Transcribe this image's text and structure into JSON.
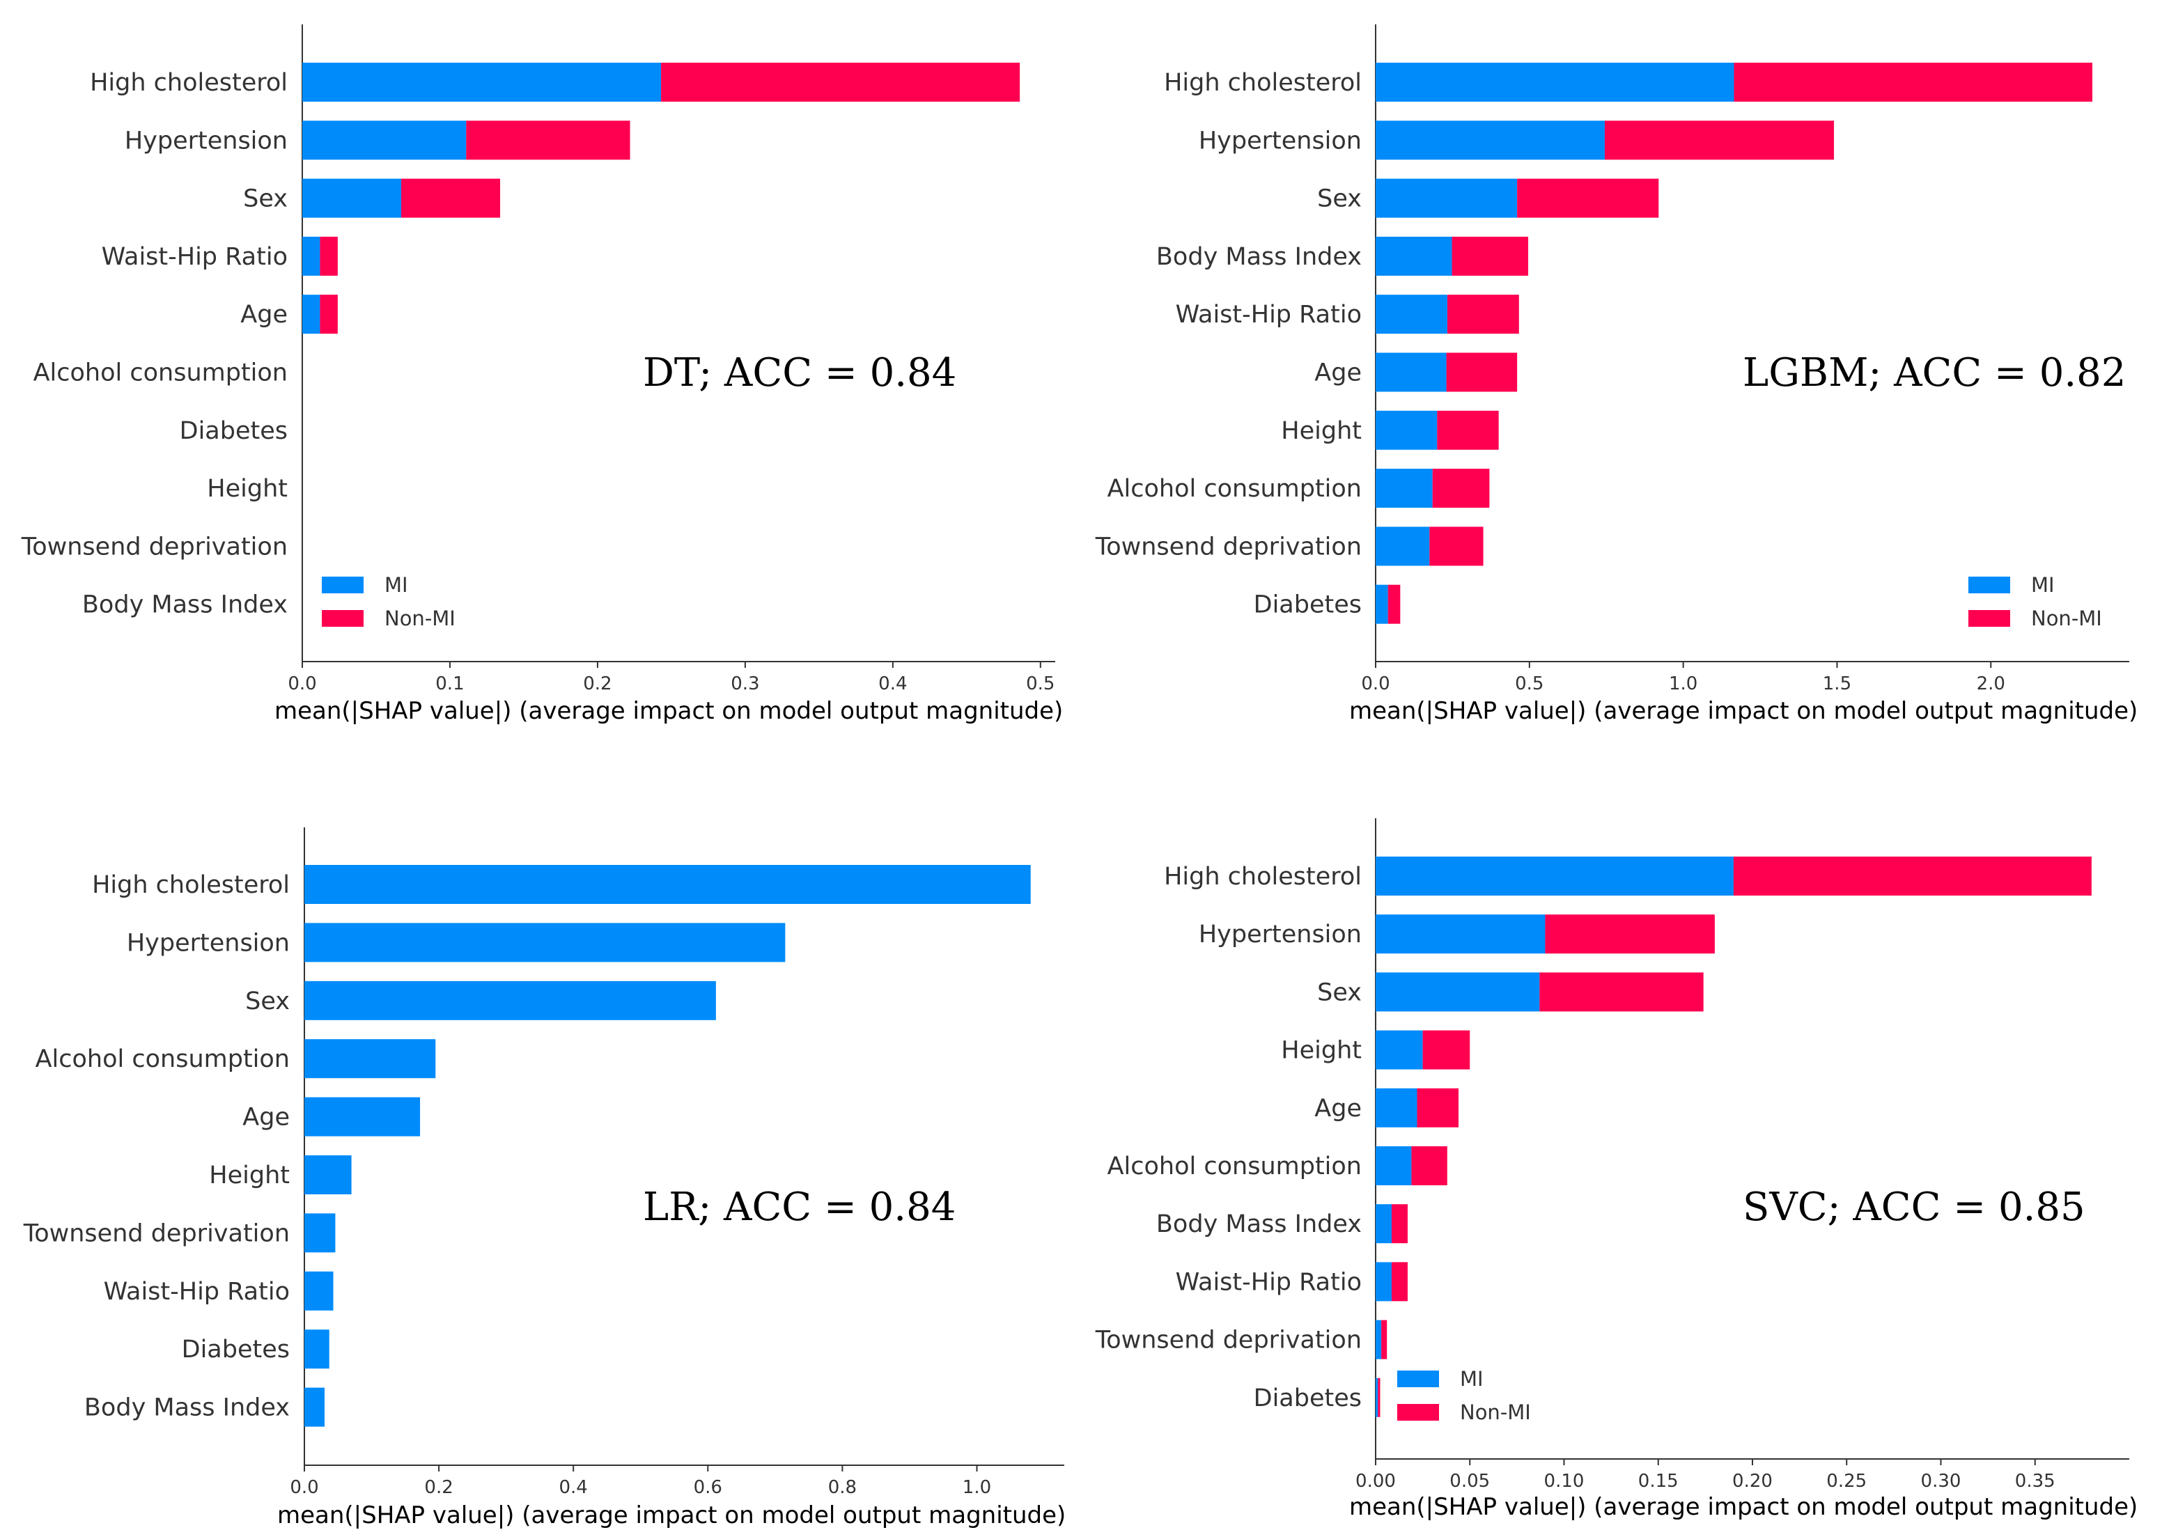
{
  "colors": {
    "mi": "#008BFB",
    "non_mi": "#FF0051",
    "axis": "#333333",
    "overlap": "#7F46A6"
  },
  "legend_labels": {
    "mi": "MI",
    "non_mi": "Non-MI"
  },
  "chart_data": [
    {
      "id": "dt",
      "type": "bar",
      "orientation": "horizontal",
      "stacked": true,
      "annotation": "DT; ACC = 0.84",
      "xlabel": "mean(|SHAP value|) (average impact on model output magnitude)",
      "xlim": [
        0,
        0.51
      ],
      "xticks": [
        0.0,
        0.1,
        0.2,
        0.3,
        0.4,
        0.5
      ],
      "xtick_labels": [
        "0.0",
        "0.1",
        "0.2",
        "0.3",
        "0.4",
        "0.5"
      ],
      "categories": [
        "High cholesterol",
        "Hypertension",
        "Sex",
        "Waist-Hip Ratio",
        "Age",
        "Alcohol consumption",
        "Diabetes",
        "Height",
        "Townsend deprivation",
        "Body Mass Index"
      ],
      "series": [
        {
          "name": "MI",
          "values": [
            0.243,
            0.111,
            0.067,
            0.012,
            0.012,
            0,
            0,
            0,
            0,
            0
          ]
        },
        {
          "name": "Non-MI",
          "values": [
            0.243,
            0.111,
            0.067,
            0.012,
            0.012,
            0,
            0,
            0,
            0,
            0
          ]
        }
      ],
      "legend": [
        "MI",
        "Non-MI"
      ],
      "legend_position": "bottom-left"
    },
    {
      "id": "lgbm",
      "type": "bar",
      "orientation": "horizontal",
      "stacked": true,
      "annotation": "LGBM; ACC = 0.82",
      "xlabel": "mean(|SHAP value|) (average impact on model output magnitude)",
      "xlim": [
        0,
        2.45
      ],
      "xticks": [
        0.0,
        0.5,
        1.0,
        1.5,
        2.0
      ],
      "xtick_labels": [
        "0.0",
        "0.5",
        "1.0",
        "1.5",
        "2.0"
      ],
      "categories": [
        "High cholesterol",
        "Hypertension",
        "Sex",
        "Body Mass Index",
        "Waist-Hip Ratio",
        "Age",
        "Height",
        "Alcohol consumption",
        "Townsend deprivation",
        "Diabetes"
      ],
      "series": [
        {
          "name": "MI",
          "values": [
            1.165,
            0.745,
            0.46,
            0.248,
            0.233,
            0.23,
            0.2,
            0.185,
            0.175,
            0.04
          ]
        },
        {
          "name": "Non-MI",
          "values": [
            1.165,
            0.745,
            0.46,
            0.248,
            0.233,
            0.23,
            0.2,
            0.185,
            0.175,
            0.04
          ]
        }
      ],
      "legend": [
        "MI",
        "Non-MI"
      ],
      "legend_position": "bottom-right"
    },
    {
      "id": "lr",
      "type": "bar",
      "orientation": "horizontal",
      "stacked": false,
      "annotation": "LR; ACC = 0.84",
      "xlabel": "mean(|SHAP value|) (average impact on model output magnitude)",
      "xlim": [
        0,
        1.13
      ],
      "xticks": [
        0.0,
        0.2,
        0.4,
        0.6,
        0.8,
        1.0
      ],
      "xtick_labels": [
        "0.0",
        "0.2",
        "0.4",
        "0.6",
        "0.8",
        "1.0"
      ],
      "categories": [
        "High cholesterol",
        "Hypertension",
        "Sex",
        "Alcohol consumption",
        "Age",
        "Height",
        "Townsend deprivation",
        "Waist-Hip Ratio",
        "Diabetes",
        "Body Mass Index"
      ],
      "series": [
        {
          "name": "MI",
          "values": [
            1.08,
            0.715,
            0.612,
            0.195,
            0.172,
            0.07,
            0.046,
            0.043,
            0.037,
            0.03
          ]
        }
      ]
    },
    {
      "id": "svc",
      "type": "bar",
      "orientation": "horizontal",
      "stacked": true,
      "annotation": "SVC; ACC = 0.85",
      "xlabel": "mean(|SHAP value|) (average impact on model output magnitude)",
      "xlim": [
        0,
        0.4
      ],
      "xticks": [
        0.0,
        0.05,
        0.1,
        0.15,
        0.2,
        0.25,
        0.3,
        0.35
      ],
      "xtick_labels": [
        "0.00",
        "0.05",
        "0.10",
        "0.15",
        "0.20",
        "0.25",
        "0.30",
        "0.35"
      ],
      "categories": [
        "High cholesterol",
        "Hypertension",
        "Sex",
        "Height",
        "Age",
        "Alcohol consumption",
        "Body Mass Index",
        "Waist-Hip Ratio",
        "Townsend deprivation",
        "Diabetes"
      ],
      "series": [
        {
          "name": "MI",
          "values": [
            0.19,
            0.09,
            0.087,
            0.025,
            0.022,
            0.019,
            0.0085,
            0.0085,
            0.003,
            0.0012
          ]
        },
        {
          "name": "Non-MI",
          "values": [
            0.19,
            0.09,
            0.087,
            0.025,
            0.022,
            0.019,
            0.0085,
            0.0085,
            0.003,
            0.0012
          ]
        }
      ],
      "legend": [
        "MI",
        "Non-MI"
      ],
      "legend_position": "bottom-left"
    }
  ]
}
